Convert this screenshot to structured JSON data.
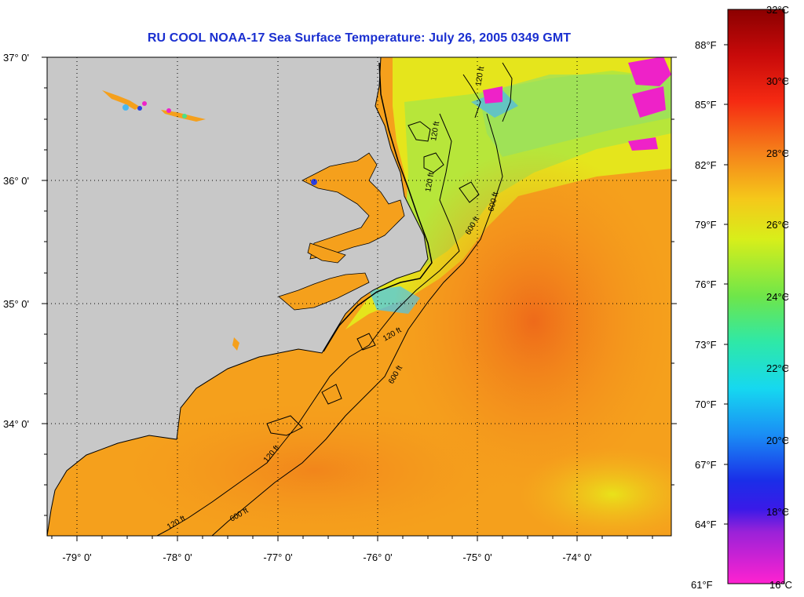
{
  "title": "RU COOL  NOAA-17  Sea Surface Temperature:  July 26, 2005 0349 GMT",
  "lat_labels": [
    "37° 0'",
    "36° 0'",
    "35° 0'",
    "34° 0'"
  ],
  "lon_labels": [
    "-79° 0'",
    "-78° 0'",
    "-77° 0'",
    "-76° 0'",
    "-75° 0'",
    "-74° 0'"
  ],
  "contour_labels": [
    "120 ft",
    "600 ft",
    "120 ft",
    "600 ft",
    "120 ft",
    "120 ft",
    "600 ft",
    "120 ft",
    "120 ft",
    "600 ft"
  ],
  "colorbar": {
    "celsius": [
      "32°C",
      "30°C",
      "28°C",
      "26°C",
      "24°C",
      "22°C",
      "20°C",
      "18°C",
      "16°C"
    ],
    "fahrenheit": [
      "88°F",
      "85°F",
      "82°F",
      "79°F",
      "76°F",
      "73°F",
      "70°F",
      "67°F",
      "64°F",
      "61°F"
    ]
  },
  "colors": {
    "land": "#c8c8c8",
    "ocean_warm": "#f59a1c",
    "ocean_cool": "#f5d21a",
    "title": "#1a2fd0"
  }
}
